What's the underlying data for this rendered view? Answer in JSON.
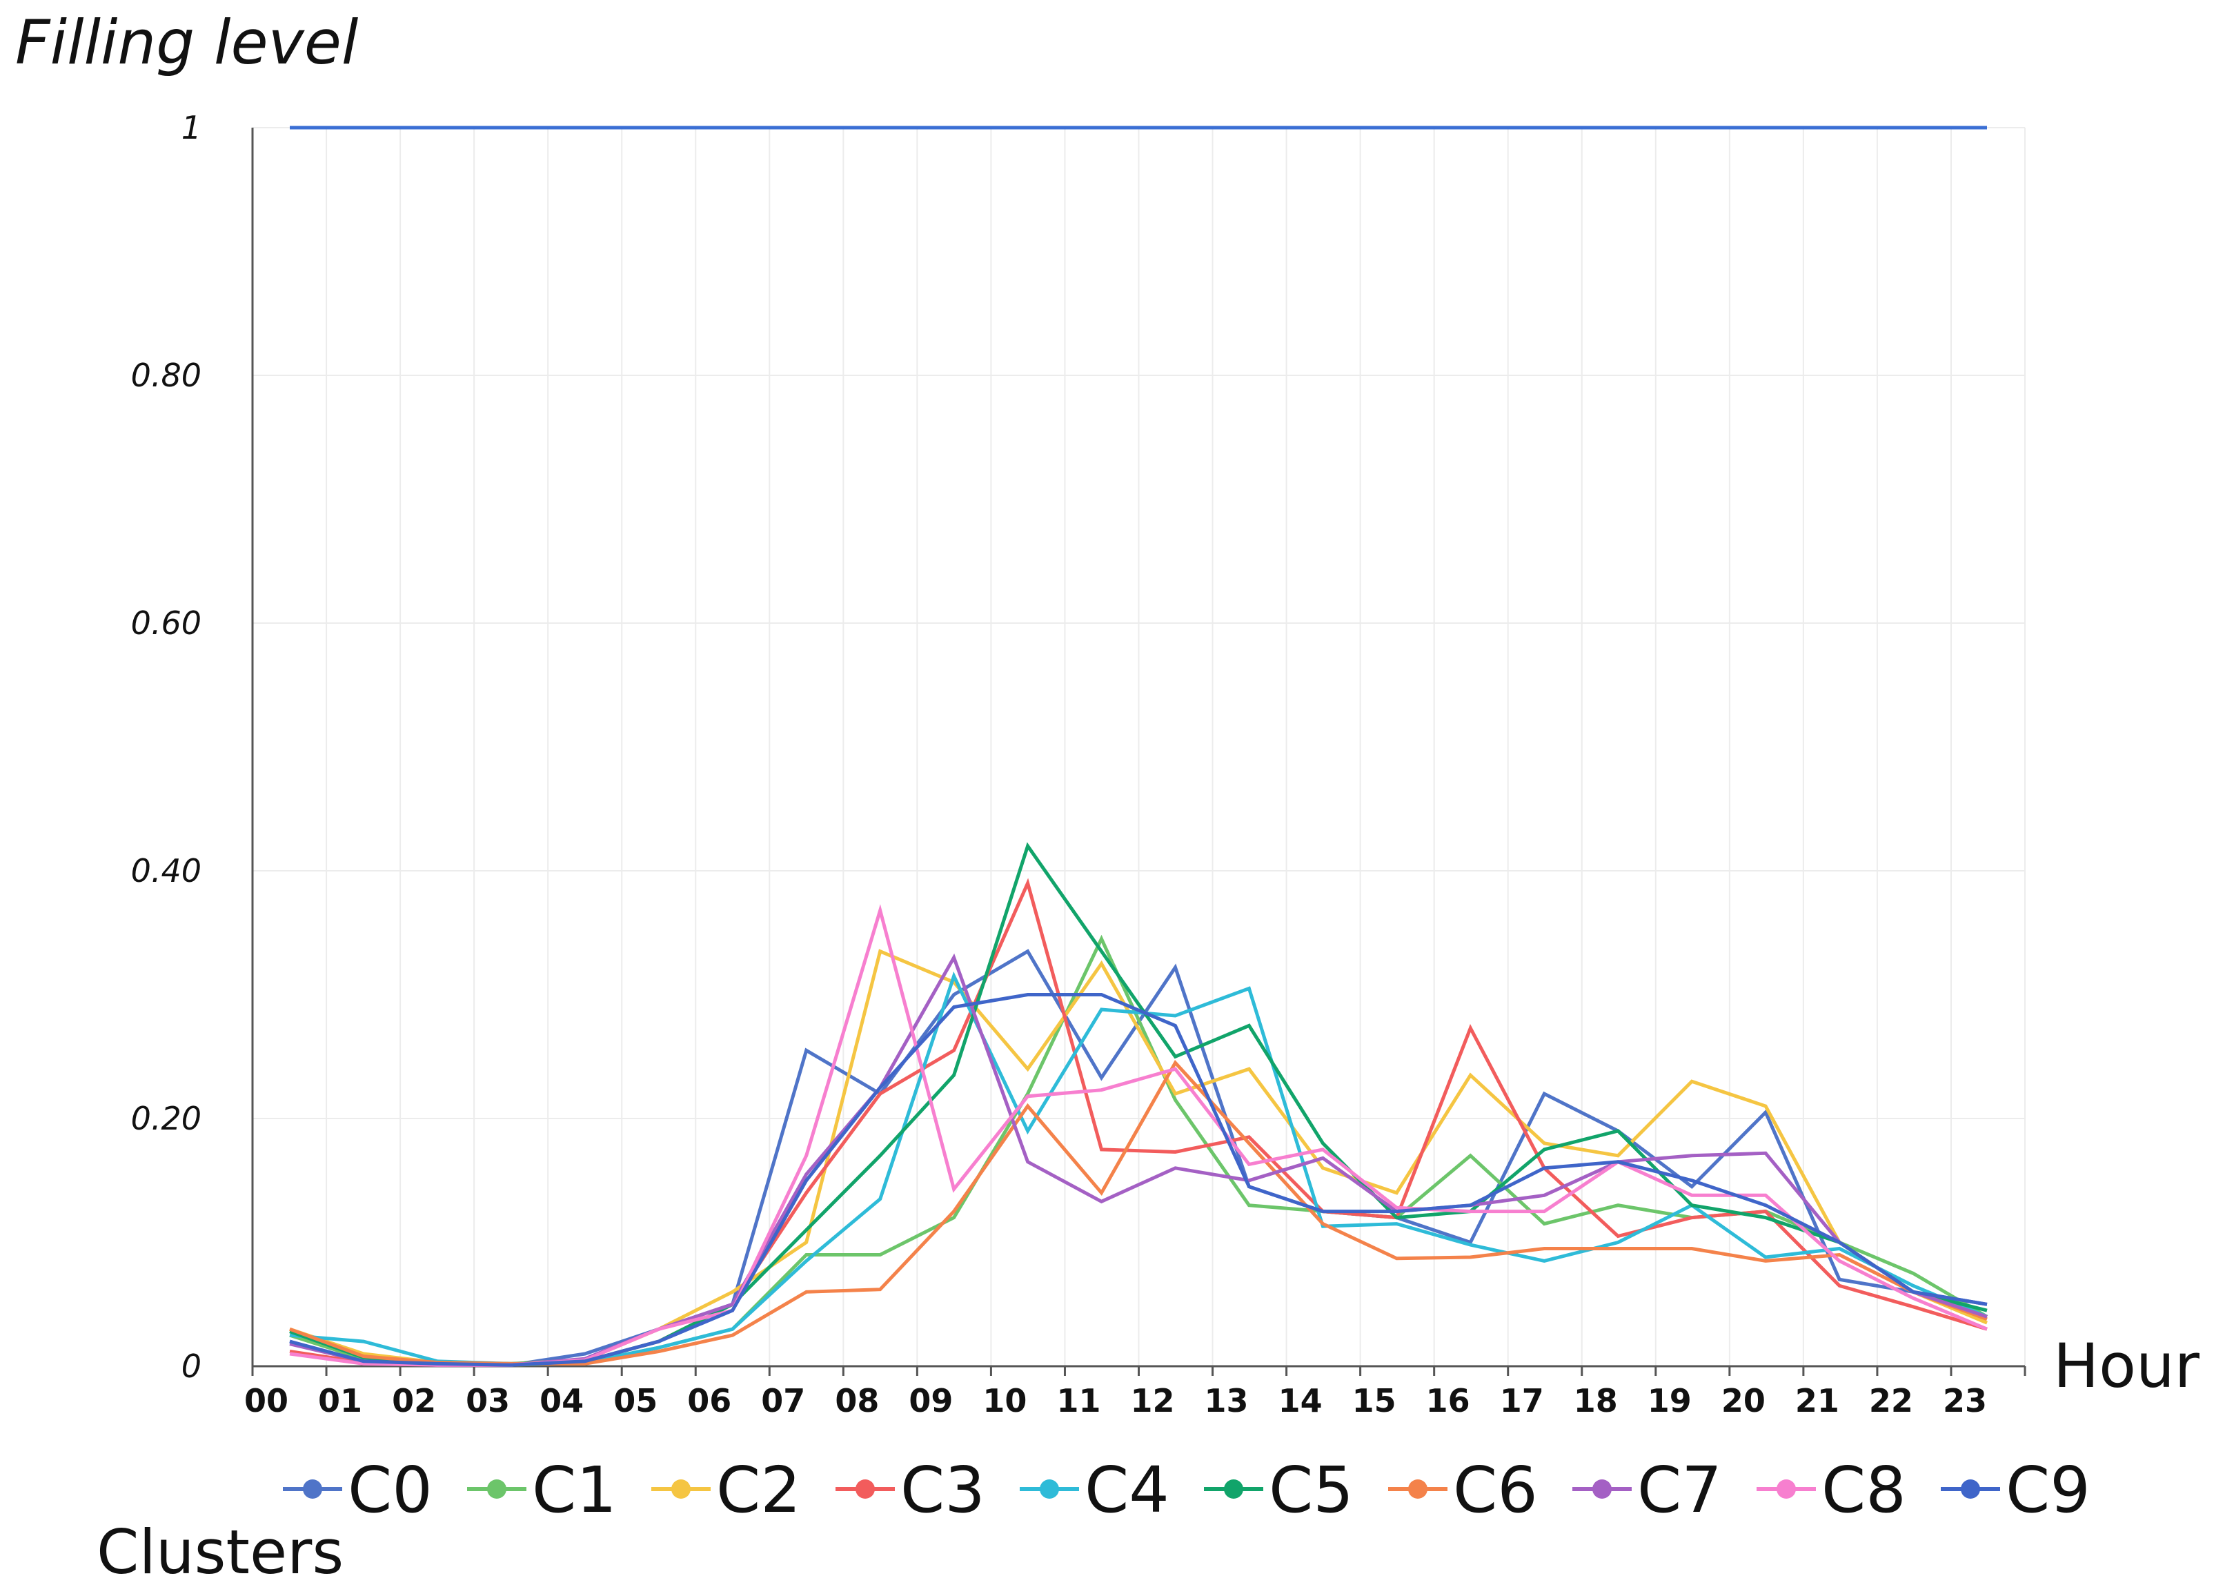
{
  "chart_data": {
    "type": "line",
    "ylabel": "Filling level",
    "xlabel": "Hour",
    "legend_title": "Clusters",
    "legend_position": "bottom",
    "grid": true,
    "ylim": [
      0,
      1
    ],
    "yticks": [
      "0",
      "0.20",
      "0.40",
      "0.60",
      "0.80",
      "1"
    ],
    "categories": [
      "00",
      "01",
      "02",
      "03",
      "04",
      "05",
      "06",
      "07",
      "08",
      "09",
      "10",
      "11",
      "12",
      "13",
      "14",
      "15",
      "16",
      "17",
      "18",
      "19",
      "20",
      "21",
      "22",
      "23"
    ],
    "reference_line": {
      "value": 1,
      "color": "#3b6fd4"
    },
    "series": [
      {
        "name": "C0",
        "color": "#4f74c8",
        "values": [
          0.02,
          0.003,
          0.001,
          0.001,
          0.01,
          0.03,
          0.05,
          0.255,
          0.22,
          0.3,
          0.335,
          0.233,
          0.322,
          0.145,
          0.125,
          0.12,
          0.1,
          0.22,
          0.19,
          0.145,
          0.205,
          0.07,
          0.06,
          0.05
        ]
      },
      {
        "name": "C1",
        "color": "#6cc56a",
        "values": [
          0.025,
          0.006,
          0.002,
          0.001,
          0.003,
          0.015,
          0.03,
          0.09,
          0.09,
          0.12,
          0.22,
          0.345,
          0.215,
          0.13,
          0.125,
          0.12,
          0.17,
          0.115,
          0.13,
          0.12,
          0.125,
          0.1,
          0.075,
          0.04
        ]
      },
      {
        "name": "C2",
        "color": "#f5c542",
        "values": [
          0.03,
          0.01,
          0.003,
          0.002,
          0.005,
          0.03,
          0.06,
          0.1,
          0.335,
          0.31,
          0.24,
          0.325,
          0.22,
          0.24,
          0.16,
          0.14,
          0.235,
          0.18,
          0.17,
          0.23,
          0.21,
          0.1,
          0.06,
          0.035
        ]
      },
      {
        "name": "C3",
        "color": "#f25c5c",
        "values": [
          0.012,
          0.003,
          0.001,
          0.001,
          0.004,
          0.02,
          0.05,
          0.14,
          0.22,
          0.255,
          0.39,
          0.175,
          0.173,
          0.185,
          0.125,
          0.12,
          0.273,
          0.16,
          0.105,
          0.12,
          0.125,
          0.065,
          0.048,
          0.03
        ]
      },
      {
        "name": "C4",
        "color": "#2ebbd8",
        "values": [
          0.025,
          0.02,
          0.004,
          0.002,
          0.003,
          0.015,
          0.03,
          0.085,
          0.135,
          0.315,
          0.19,
          0.288,
          0.283,
          0.305,
          0.113,
          0.115,
          0.098,
          0.085,
          0.1,
          0.13,
          0.088,
          0.095,
          0.065,
          0.04
        ]
      },
      {
        "name": "C5",
        "color": "#11a46a",
        "values": [
          0.028,
          0.007,
          0.003,
          0.002,
          0.004,
          0.02,
          0.05,
          0.11,
          0.17,
          0.235,
          0.42,
          0.335,
          0.25,
          0.275,
          0.18,
          0.12,
          0.125,
          0.175,
          0.19,
          0.13,
          0.12,
          0.1,
          0.06,
          0.045
        ]
      },
      {
        "name": "C6",
        "color": "#f4824a",
        "values": [
          0.03,
          0.008,
          0.003,
          0.002,
          0.002,
          0.012,
          0.025,
          0.06,
          0.062,
          0.125,
          0.21,
          0.14,
          0.245,
          0.18,
          0.115,
          0.087,
          0.088,
          0.095,
          0.095,
          0.095,
          0.085,
          0.09,
          0.06,
          0.038
        ]
      },
      {
        "name": "C7",
        "color": "#a460c4",
        "values": [
          0.018,
          0.004,
          0.001,
          0.001,
          0.006,
          0.03,
          0.05,
          0.155,
          0.225,
          0.33,
          0.165,
          0.133,
          0.16,
          0.15,
          0.168,
          0.125,
          0.13,
          0.138,
          0.165,
          0.17,
          0.172,
          0.1,
          0.06,
          0.04
        ]
      },
      {
        "name": "C8",
        "color": "#f77fcf",
        "values": [
          0.01,
          0.002,
          0.001,
          0.001,
          0.005,
          0.03,
          0.045,
          0.17,
          0.368,
          0.143,
          0.218,
          0.223,
          0.24,
          0.163,
          0.175,
          0.128,
          0.125,
          0.125,
          0.165,
          0.138,
          0.138,
          0.085,
          0.055,
          0.03
        ]
      },
      {
        "name": "C9",
        "color": "#3f65c9",
        "values": [
          0.02,
          0.004,
          0.002,
          0.001,
          0.004,
          0.02,
          0.045,
          0.15,
          0.225,
          0.29,
          0.3,
          0.3,
          0.275,
          0.145,
          0.125,
          0.125,
          0.13,
          0.16,
          0.165,
          0.15,
          0.13,
          0.1,
          0.06,
          0.05
        ]
      }
    ]
  }
}
